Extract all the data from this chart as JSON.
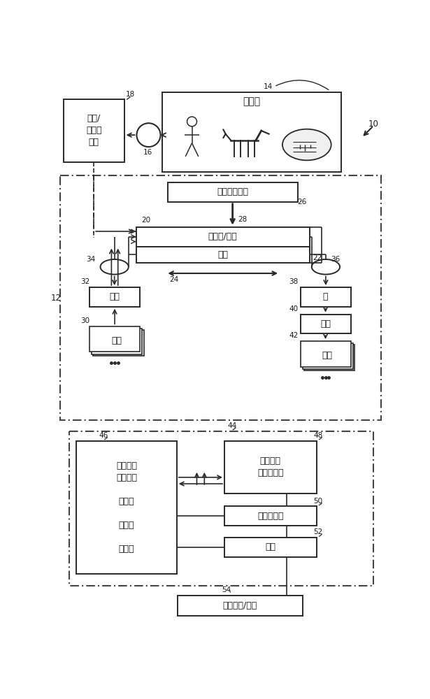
{
  "bg_color": "#ffffff",
  "lc": "#2a2a2a",
  "fs": 9,
  "fs_sm": 7.5,
  "labels": {
    "sample_source": "样品源",
    "sample_lib": "样品/\n库准备\n系统",
    "optical": "光学检测系统",
    "flow_cell": "流动池/阵列",
    "stage": "载台",
    "valve1": "阀门",
    "reagent": "试剂",
    "pump": "泵",
    "valve2": "阀门",
    "dispose": "处置",
    "control": "控制电路\n－流体学\n\n－光学\n\n－载台\n\n－其他",
    "data_acq": "数据获取\n及分析系统",
    "storage": "存储器电路",
    "interface": "接口",
    "external": "外部网络/系统"
  },
  "nums": {
    "10": "10",
    "12": "12",
    "14": "14",
    "16": "16",
    "18": "18",
    "20": "20",
    "22": "22",
    "24": "24",
    "26": "26",
    "28": "28",
    "30": "30",
    "32": "32",
    "34": "34",
    "36": "36",
    "38": "38",
    "40": "40",
    "42": "42",
    "44": "44",
    "46": "46",
    "48": "48",
    "50": "50",
    "52": "52",
    "54": "54"
  }
}
